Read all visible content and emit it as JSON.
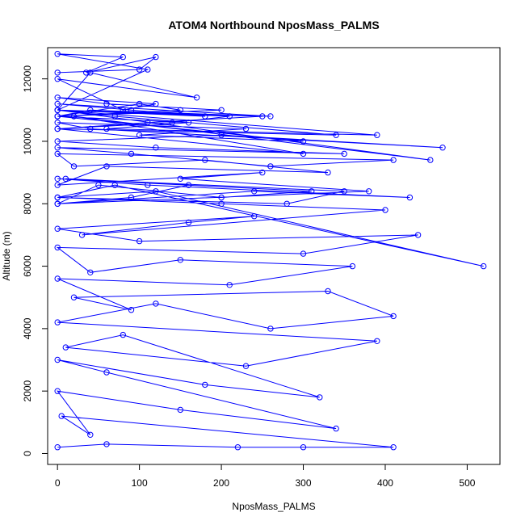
{
  "chart_data": {
    "type": "scatter",
    "title": "ATOM4 Northbound NposMass_PALMS",
    "xlabel": "NposMass_PALMS",
    "ylabel": "Altitude (m)",
    "xlim": [
      -12,
      540
    ],
    "ylim": [
      -350,
      13000
    ],
    "x_ticks": [
      0,
      100,
      200,
      300,
      400,
      500
    ],
    "y_ticks": [
      0,
      2000,
      4000,
      6000,
      8000,
      10000,
      12000
    ],
    "x_tick_labels": [
      "0",
      "100",
      "200",
      "300",
      "400",
      "500"
    ],
    "y_tick_labels": [
      "0",
      "2000",
      "4000",
      "6000",
      "8000",
      "10000",
      "12000"
    ],
    "grid": false,
    "series": [
      {
        "type": "line+points",
        "color": "#0000ff",
        "marker": "open-circle",
        "x": [
          0,
          60,
          220,
          300,
          410,
          5,
          40,
          0,
          150,
          340,
          60,
          0,
          180,
          320,
          80,
          10,
          230,
          390,
          0,
          120,
          260,
          410,
          330,
          20,
          90,
          0,
          210,
          360,
          150,
          40,
          0,
          300,
          440,
          100,
          0,
          240,
          160,
          30,
          400,
          200,
          0,
          120,
          520,
          70,
          0,
          280,
          350,
          10,
          160,
          90,
          0,
          240,
          430,
          110,
          0,
          310,
          200,
          50,
          0,
          380,
          150,
          250,
          0,
          60,
          330,
          180,
          20,
          0,
          410,
          260,
          90,
          0,
          350,
          120,
          0,
          200,
          470,
          40,
          0,
          230,
          100,
          300,
          0,
          160,
          60,
          390,
          0,
          210,
          140,
          0,
          340,
          70,
          0,
          250,
          110,
          0,
          300,
          20,
          455,
          0,
          180,
          90,
          0,
          260,
          40,
          0,
          150,
          100,
          0,
          200,
          60,
          0,
          120,
          80,
          0,
          170,
          40,
          0,
          110,
          0,
          80,
          35,
          120,
          100,
          0
        ],
        "y": [
          200,
          300,
          200,
          200,
          200,
          1200,
          600,
          2000,
          1400,
          800,
          2600,
          3000,
          2200,
          1800,
          3800,
          3400,
          2800,
          3600,
          4200,
          4800,
          4000,
          4400,
          5200,
          5000,
          4600,
          5600,
          5400,
          6000,
          6200,
          5800,
          6600,
          6400,
          7000,
          6800,
          7200,
          7600,
          7400,
          7000,
          7800,
          8000,
          8200,
          8400,
          6000,
          8600,
          8200,
          8000,
          8400,
          8800,
          8600,
          8200,
          8000,
          8400,
          8200,
          8600,
          8800,
          8400,
          8200,
          8600,
          8000,
          8400,
          8800,
          9000,
          8600,
          9200,
          9000,
          9400,
          9200,
          9600,
          9400,
          9200,
          9600,
          9800,
          9600,
          9800,
          10000,
          10200,
          9800,
          10400,
          10600,
          10400,
          10200,
          10000,
          10800,
          10600,
          10400,
          10200,
          11000,
          10800,
          10600,
          10400,
          10200,
          10800,
          11000,
          10800,
          10600,
          10400,
          9600,
          10800,
          9400,
          11000,
          10800,
          11000,
          11200,
          10800,
          11000,
          10800,
          11000,
          11200,
          10800,
          11000,
          11200,
          11400,
          11200,
          11000,
          12000,
          11400,
          12200,
          11000,
          12300,
          12800,
          12700,
          12200,
          12700,
          12300,
          12200
        ]
      }
    ]
  }
}
